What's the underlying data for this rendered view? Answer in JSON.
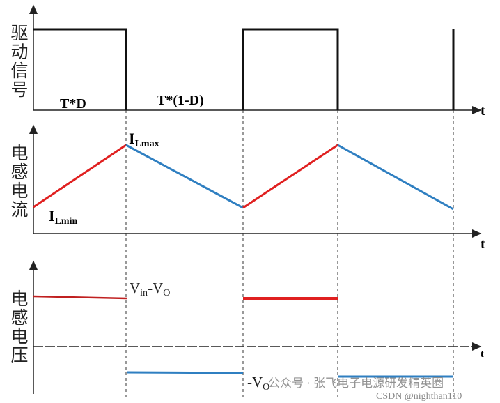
{
  "panels": [
    {
      "label": "驱动信号",
      "axis_label": "t"
    },
    {
      "label": "电感电流",
      "axis_label": "t"
    },
    {
      "label": "电感电压",
      "axis_label": "t"
    }
  ],
  "intervals": {
    "on": "T*D",
    "off": "T*(1-D)"
  },
  "current_labels": {
    "max": {
      "main": "I",
      "sub": "Lmax"
    },
    "min": {
      "main": "I",
      "sub": "Lmin"
    }
  },
  "voltage_labels": {
    "positive": {
      "v1": "V",
      "sub1": "in",
      "v2": "-V",
      "sub2": "O"
    },
    "negative": {
      "v": "-V",
      "sub": "O"
    }
  },
  "watermark": {
    "wechat": "公众号 · 张飞电子电源研发精英圈",
    "csdn": "CSDN @nighthan110"
  }
}
